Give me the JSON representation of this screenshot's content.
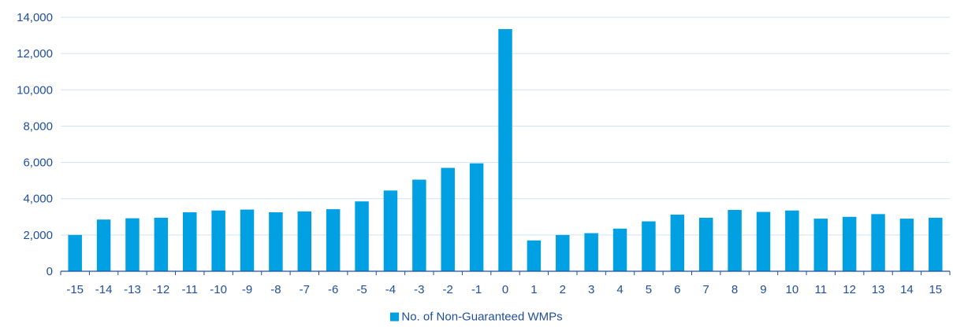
{
  "chart_data": {
    "type": "bar",
    "categories": [
      "-15",
      "-14",
      "-13",
      "-12",
      "-11",
      "-10",
      "-9",
      "-8",
      "-7",
      "-6",
      "-5",
      "-4",
      "-3",
      "-2",
      "-1",
      "0",
      "1",
      "2",
      "3",
      "4",
      "5",
      "6",
      "7",
      "8",
      "9",
      "10",
      "11",
      "12",
      "13",
      "14",
      "15"
    ],
    "series": [
      {
        "name": "No. of Non-Guaranteed WMPs",
        "color": "#00a0e3",
        "values": [
          2000,
          2850,
          2920,
          2950,
          3250,
          3350,
          3400,
          3250,
          3300,
          3420,
          3850,
          4450,
          5050,
          5700,
          5950,
          13350,
          1700,
          2000,
          2100,
          2350,
          2750,
          3120,
          2950,
          3380,
          3270,
          3350,
          2900,
          3000,
          3150,
          2900,
          2950
        ]
      }
    ],
    "ylim": [
      0,
      14000
    ],
    "yticks": [
      0,
      2000,
      4000,
      6000,
      8000,
      10000,
      12000,
      14000
    ],
    "ytick_labels": [
      "0",
      "2,000",
      "4,000",
      "6,000",
      "8,000",
      "10,000",
      "12,000",
      "14,000"
    ],
    "grid": true,
    "legend_position": "bottom",
    "title": "",
    "xlabel": "",
    "ylabel": ""
  }
}
